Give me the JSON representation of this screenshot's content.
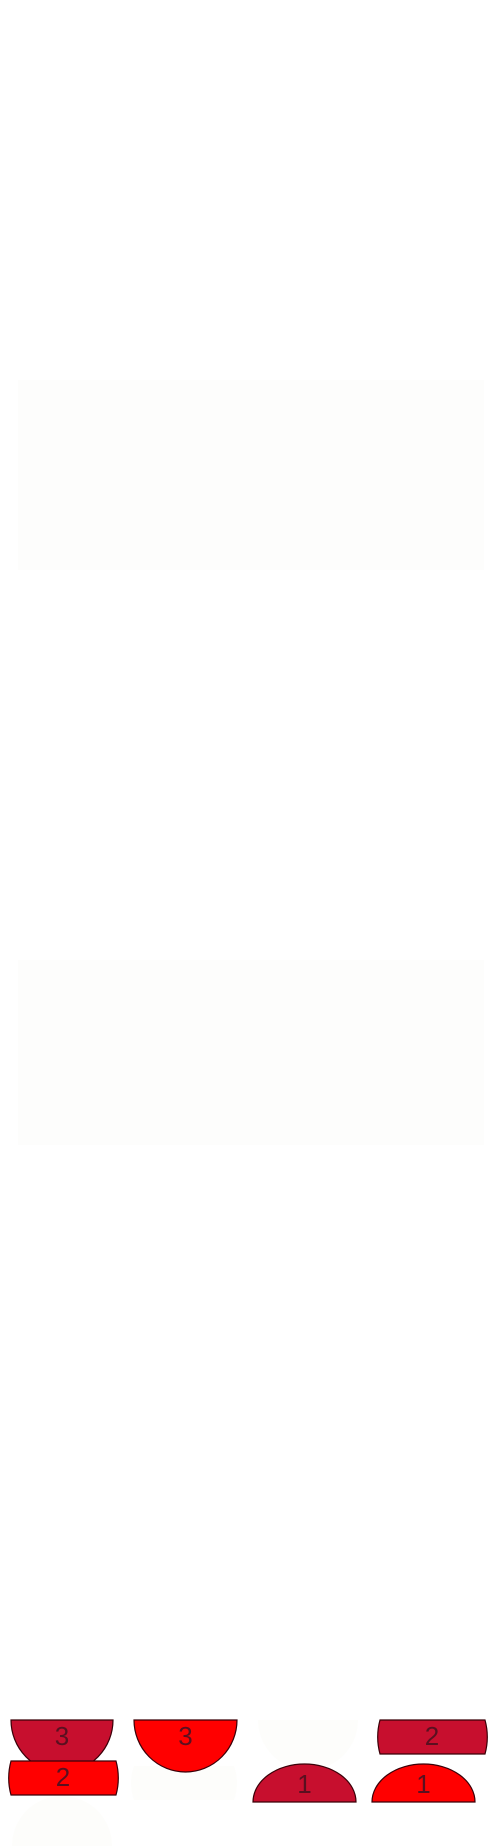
{
  "colors": {
    "background": "#ffffff",
    "dark_red": "#c70f2e",
    "bright_red": "#ff0000",
    "outline": "#3a0008",
    "label": "#5a1020",
    "faint": "#fdfdfb"
  },
  "pieces": [
    {
      "id": "piece-3-dark-bowl",
      "label": "3",
      "shape": "bowl",
      "color": "dark_red",
      "interactable": true
    },
    {
      "id": "piece-3-bright-bowl",
      "label": "3",
      "shape": "bowl",
      "color": "bright_red",
      "interactable": true
    },
    {
      "id": "piece-2-dark-barrel",
      "label": "2",
      "shape": "barrel",
      "color": "dark_red",
      "interactable": true
    },
    {
      "id": "piece-2-bright-barrel",
      "label": "2",
      "shape": "barrel",
      "color": "bright_red",
      "interactable": true
    },
    {
      "id": "piece-1-dark-dome",
      "label": "1",
      "shape": "dome",
      "color": "dark_red",
      "interactable": true
    },
    {
      "id": "piece-1-bright-dome",
      "label": "1",
      "shape": "dome",
      "color": "bright_red",
      "interactable": true
    }
  ]
}
